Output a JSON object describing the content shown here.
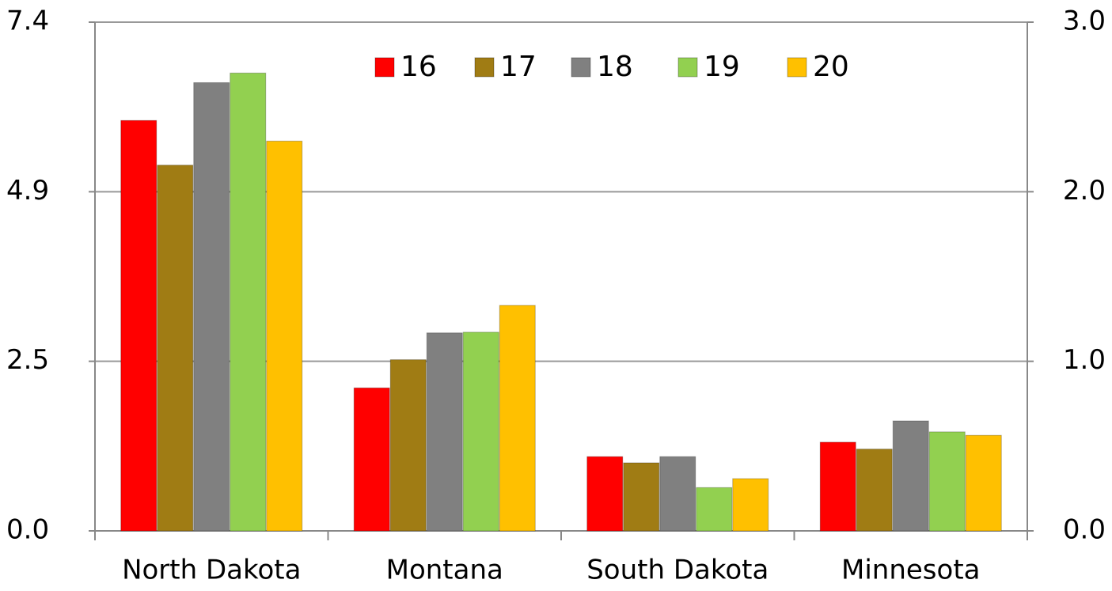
{
  "chart_data": {
    "type": "bar",
    "categories": [
      "North Dakota",
      "Montana",
      "South Dakota",
      "Minnesota"
    ],
    "series": [
      {
        "name": "16",
        "color": "#ff0000",
        "values": [
          5.97,
          2.08,
          1.08,
          1.29
        ]
      },
      {
        "name": "17",
        "color": "#a07c14",
        "values": [
          5.32,
          2.49,
          0.99,
          1.19
        ]
      },
      {
        "name": "18",
        "color": "#808080",
        "values": [
          6.52,
          2.88,
          1.08,
          1.6
        ]
      },
      {
        "name": "19",
        "color": "#92d050",
        "values": [
          6.66,
          2.89,
          0.63,
          1.44
        ]
      },
      {
        "name": "20",
        "color": "#ffc000",
        "values": [
          5.67,
          3.28,
          0.76,
          1.39
        ]
      }
    ],
    "ylim": [
      0,
      7.4
    ],
    "yticks": [
      {
        "value": 0,
        "label": "0.0"
      },
      {
        "value": 2.467,
        "label": "2.5"
      },
      {
        "value": 4.933,
        "label": "4.9"
      },
      {
        "value": 7.4,
        "label": "7.4"
      }
    ],
    "y2lim": [
      0,
      3
    ],
    "y2ticks": [
      {
        "value": 0,
        "label": "0.0"
      },
      {
        "value": 1,
        "label": "1.0"
      },
      {
        "value": 2,
        "label": "2.0"
      },
      {
        "value": 3,
        "label": "3.0"
      }
    ],
    "grid": true,
    "legend": "top"
  }
}
